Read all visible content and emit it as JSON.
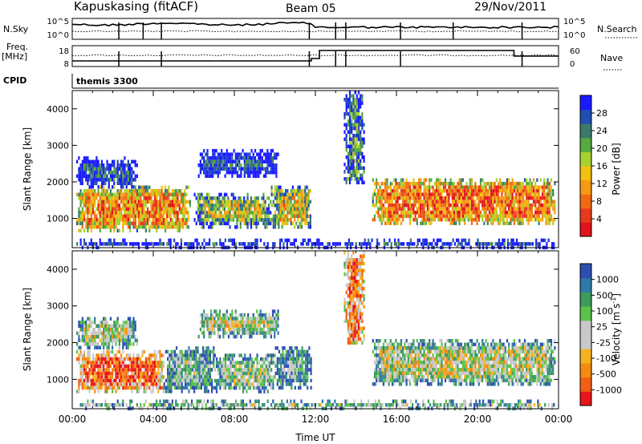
{
  "header": {
    "station": "Kapuskasing (fitACF)",
    "beam": "Beam 05",
    "date": "29/Nov/2011"
  },
  "noise_panel": {
    "left_label": "N.Sky",
    "left_ticks": [
      "10^5",
      "10^0"
    ],
    "right_label": "N.Search",
    "right_ticks": [
      "10^5",
      "10^0"
    ]
  },
  "freq_panel": {
    "left_label_1": "Freq.",
    "left_label_2": "[MHz]",
    "left_ticks": [
      "18",
      "8"
    ],
    "right_label": "Nave",
    "right_ticks": [
      "60",
      "0"
    ]
  },
  "cpid": {
    "label": "CPID",
    "program": "themis 3300"
  },
  "chart_data": [
    {
      "type": "heatmap",
      "name": "power",
      "ylabel": "Slant Range [km]",
      "y_ticks": [
        "1000",
        "2000",
        "3000",
        "4000"
      ],
      "ylim": [
        200,
        4500
      ],
      "xlim": [
        0,
        24
      ],
      "colorbar_label": "Power [dB]",
      "colorbar_ticks": [
        "4",
        "8",
        "12",
        "16",
        "20",
        "24",
        "28"
      ],
      "colorbar_colors": [
        "#1a1aff",
        "#1f4fb4",
        "#3c7a6e",
        "#55aa40",
        "#a8d22e",
        "#f2c10d",
        "#f59a12",
        "#f26a10",
        "#e8391c",
        "#e0131b"
      ],
      "echo_regions": [
        {
          "t0": 0.2,
          "t1": 5.8,
          "r0": 700,
          "r1": 1900,
          "level": 0.7
        },
        {
          "t0": 0.2,
          "t1": 3.2,
          "r0": 1900,
          "r1": 2700,
          "level": 0.15
        },
        {
          "t0": 6.2,
          "t1": 10.2,
          "r0": 2200,
          "r1": 2900,
          "level": 0.12
        },
        {
          "t0": 6.0,
          "t1": 9.8,
          "r0": 800,
          "r1": 1700,
          "level": 0.45
        },
        {
          "t0": 9.8,
          "t1": 11.8,
          "r0": 800,
          "r1": 1900,
          "level": 0.55
        },
        {
          "t0": 13.4,
          "t1": 14.4,
          "r0": 2000,
          "r1": 4500,
          "level": 0.35
        },
        {
          "t0": 14.8,
          "t1": 23.8,
          "r0": 900,
          "r1": 2100,
          "level": 0.75
        },
        {
          "t0": 0.2,
          "t1": 23.8,
          "r0": 250,
          "r1": 450,
          "level": 0.25
        }
      ]
    },
    {
      "type": "heatmap",
      "name": "velocity",
      "ylabel": "Slant Range [km]",
      "y_ticks": [
        "1000",
        "2000",
        "3000",
        "4000"
      ],
      "ylim": [
        200,
        4500
      ],
      "xlim": [
        0,
        24
      ],
      "xlabel": "Time UT",
      "x_ticks": [
        "00:00",
        "04:00",
        "08:00",
        "12:00",
        "16:00",
        "20:00",
        "00:00"
      ],
      "colorbar_label": "Velocity [m s",
      "colorbar_label_sup": "-1",
      "colorbar_label_end": "]",
      "colorbar_ticks": [
        "1000",
        "500",
        "100",
        "25",
        "-25",
        "-100",
        "-500",
        "-1000"
      ],
      "colorbar_colors": [
        "#2d4fb0",
        "#2f79a8",
        "#3d9b5c",
        "#5bc24a",
        "#c8c8c8",
        "#c8c8c8",
        "#f5b21c",
        "#f58a12",
        "#f25f14",
        "#e8151a"
      ],
      "echo_regions": [
        {
          "t0": 0.2,
          "t1": 4.5,
          "r0": 700,
          "r1": 1800,
          "level": 0.85
        },
        {
          "t0": 4.5,
          "t1": 7.0,
          "r0": 700,
          "r1": 1900,
          "level": 0.35
        },
        {
          "t0": 0.2,
          "t1": 3.2,
          "r0": 1900,
          "r1": 2700,
          "level": 0.5
        },
        {
          "t0": 6.2,
          "t1": 10.2,
          "r0": 2200,
          "r1": 2900,
          "level": 0.5
        },
        {
          "t0": 7.0,
          "t1": 10.0,
          "r0": 700,
          "r1": 1700,
          "level": 0.45
        },
        {
          "t0": 10.0,
          "t1": 11.8,
          "r0": 800,
          "r1": 1900,
          "level": 0.3
        },
        {
          "t0": 13.4,
          "t1": 14.4,
          "r0": 2000,
          "r1": 4500,
          "level": 0.85
        },
        {
          "t0": 14.8,
          "t1": 23.8,
          "r0": 900,
          "r1": 2100,
          "level": 0.5
        },
        {
          "t0": 0.2,
          "t1": 23.8,
          "r0": 250,
          "r1": 450,
          "level": 0.55
        }
      ]
    }
  ]
}
